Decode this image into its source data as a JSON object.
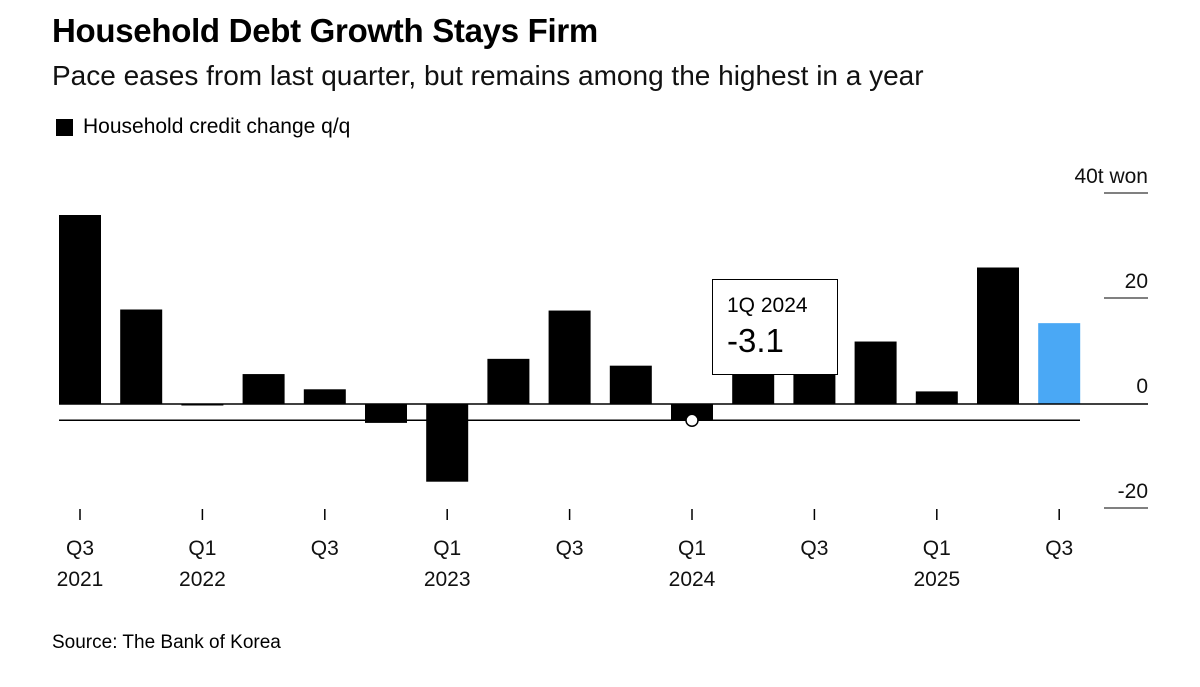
{
  "title": "Household Debt Growth Stays Firm",
  "subtitle": "Pace eases from last quarter, but remains among the highest in a year",
  "legend_label": "Household credit change q/q",
  "source": "Source: The Bank of Korea",
  "tooltip": {
    "label": "1Q 2024",
    "value": "-3.1"
  },
  "colors": {
    "bar": "#000000",
    "highlight": "#4aa8f5",
    "axis": "#000000"
  },
  "chart_data": {
    "type": "bar",
    "title": "Household Debt Growth Stays Firm",
    "ylabel": "40t won",
    "ylim": [
      -20,
      40
    ],
    "yticks": [
      {
        "value": 40,
        "label": "40t won"
      },
      {
        "value": 20,
        "label": "20"
      },
      {
        "value": 0,
        "label": "0"
      },
      {
        "value": -20,
        "label": "-20"
      }
    ],
    "categories": [
      "3Q 2021",
      "4Q 2021",
      "1Q 2022",
      "2Q 2022",
      "3Q 2022",
      "4Q 2022",
      "1Q 2023",
      "2Q 2023",
      "3Q 2023",
      "4Q 2023",
      "1Q 2024",
      "2Q 2024",
      "3Q 2024",
      "4Q 2024",
      "1Q 2025",
      "2Q 2025",
      "3Q 2025"
    ],
    "values": [
      36.0,
      18.0,
      0.0,
      5.7,
      2.8,
      -3.6,
      -14.8,
      8.6,
      17.8,
      7.3,
      -3.1,
      6.0,
      6.0,
      11.9,
      2.4,
      26.0,
      15.4
    ],
    "highlight_index": 16,
    "xtick_labels": [
      {
        "index": 0,
        "quarter": "Q3",
        "year": "2021"
      },
      {
        "index": 2,
        "quarter": "Q1",
        "year": "2022"
      },
      {
        "index": 4,
        "quarter": "Q3",
        "year": ""
      },
      {
        "index": 6,
        "quarter": "Q1",
        "year": "2023"
      },
      {
        "index": 8,
        "quarter": "Q3",
        "year": ""
      },
      {
        "index": 10,
        "quarter": "Q1",
        "year": "2024"
      },
      {
        "index": 12,
        "quarter": "Q3",
        "year": ""
      },
      {
        "index": 14,
        "quarter": "Q1",
        "year": "2025"
      },
      {
        "index": 16,
        "quarter": "Q3",
        "year": ""
      }
    ],
    "annotation": {
      "index": 10,
      "label": "1Q 2024",
      "value": -3.1
    }
  }
}
